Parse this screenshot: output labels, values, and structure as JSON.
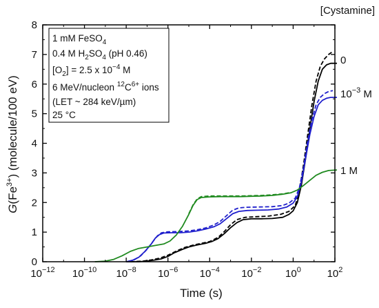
{
  "chart_data": {
    "type": "line",
    "title": "",
    "xlabel": "Time (s)",
    "ylabel": "G(Fe3+) (molecule/100 eV)",
    "xscale": "log10",
    "xlim": [
      1e-12,
      100.0
    ],
    "ylim": [
      0,
      8
    ],
    "grid": false,
    "yticks": [
      0,
      1,
      2,
      3,
      4,
      5,
      6,
      7,
      8
    ],
    "xtick_exponents": [
      -12,
      -10,
      -8,
      -6,
      -4,
      -2,
      0,
      2
    ],
    "legend_title": "[Cystamine]",
    "series_labels": [
      {
        "text": "0",
        "color": "#000000"
      },
      {
        "text": "10−3 M",
        "color": "#1f1fcc"
      },
      {
        "text": "1 M",
        "color": "#1f8a1f"
      }
    ],
    "conditions": [
      "1 mM FeSO4",
      "0.4 M H2SO4 (pH 0.46)",
      "[O2] = 2.5 x 10−4 M",
      "6 MeV/nucleon 12C6+ ions",
      "(LET ~ 284 keV/µm)",
      "25 °C"
    ],
    "series": [
      {
        "cystamine": "0",
        "style": "solid",
        "color": "#000000",
        "points": [
          [
            -8.0,
            0.0
          ],
          [
            -7.4,
            0.0
          ],
          [
            -7.0,
            0.02
          ],
          [
            -6.6,
            0.06
          ],
          [
            -6.3,
            0.1
          ],
          [
            -6.0,
            0.18
          ],
          [
            -5.7,
            0.3
          ],
          [
            -5.3,
            0.42
          ],
          [
            -5.0,
            0.5
          ],
          [
            -4.7,
            0.55
          ],
          [
            -4.5,
            0.58
          ],
          [
            -4.2,
            0.62
          ],
          [
            -3.9,
            0.68
          ],
          [
            -3.6,
            0.78
          ],
          [
            -3.3,
            0.95
          ],
          [
            -3.0,
            1.15
          ],
          [
            -2.7,
            1.32
          ],
          [
            -2.4,
            1.42
          ],
          [
            -2.0,
            1.45
          ],
          [
            -1.5,
            1.45
          ],
          [
            -1.0,
            1.46
          ],
          [
            -0.5,
            1.5
          ],
          [
            -0.2,
            1.6
          ],
          [
            0.0,
            1.72
          ],
          [
            0.2,
            2.0
          ],
          [
            0.4,
            2.6
          ],
          [
            0.6,
            3.5
          ],
          [
            0.8,
            4.5
          ],
          [
            1.0,
            5.4
          ],
          [
            1.2,
            6.1
          ],
          [
            1.4,
            6.5
          ],
          [
            1.6,
            6.65
          ],
          [
            1.8,
            6.7
          ],
          [
            2.1,
            6.7
          ]
        ]
      },
      {
        "cystamine": "0",
        "style": "dashed",
        "color": "#000000",
        "points": [
          [
            -7.8,
            0.0
          ],
          [
            -7.2,
            0.02
          ],
          [
            -6.8,
            0.06
          ],
          [
            -6.4,
            0.12
          ],
          [
            -6.0,
            0.22
          ],
          [
            -5.6,
            0.36
          ],
          [
            -5.2,
            0.48
          ],
          [
            -4.8,
            0.56
          ],
          [
            -4.4,
            0.62
          ],
          [
            -4.0,
            0.68
          ],
          [
            -3.6,
            0.82
          ],
          [
            -3.3,
            1.02
          ],
          [
            -3.0,
            1.25
          ],
          [
            -2.7,
            1.42
          ],
          [
            -2.3,
            1.5
          ],
          [
            -1.8,
            1.52
          ],
          [
            -1.2,
            1.54
          ],
          [
            -0.6,
            1.6
          ],
          [
            -0.2,
            1.7
          ],
          [
            0.1,
            1.9
          ],
          [
            0.3,
            2.4
          ],
          [
            0.5,
            3.3
          ],
          [
            0.7,
            4.3
          ],
          [
            0.9,
            5.3
          ],
          [
            1.1,
            6.1
          ],
          [
            1.3,
            6.6
          ],
          [
            1.5,
            6.85
          ],
          [
            1.7,
            7.0
          ],
          [
            1.9,
            7.1
          ]
        ]
      },
      {
        "cystamine": "10−3 M",
        "style": "solid",
        "color": "#1f1fcc",
        "points": [
          [
            -8.0,
            0.0
          ],
          [
            -7.7,
            0.05
          ],
          [
            -7.4,
            0.15
          ],
          [
            -7.1,
            0.35
          ],
          [
            -6.8,
            0.6
          ],
          [
            -6.6,
            0.8
          ],
          [
            -6.4,
            0.92
          ],
          [
            -6.2,
            0.97
          ],
          [
            -5.8,
            0.98
          ],
          [
            -5.4,
            0.98
          ],
          [
            -5.0,
            1.0
          ],
          [
            -4.6,
            1.04
          ],
          [
            -4.2,
            1.1
          ],
          [
            -3.8,
            1.18
          ],
          [
            -3.5,
            1.28
          ],
          [
            -3.2,
            1.45
          ],
          [
            -2.9,
            1.62
          ],
          [
            -2.6,
            1.7
          ],
          [
            -2.2,
            1.73
          ],
          [
            -1.7,
            1.74
          ],
          [
            -1.2,
            1.75
          ],
          [
            -0.7,
            1.78
          ],
          [
            -0.3,
            1.85
          ],
          [
            0.0,
            1.98
          ],
          [
            0.2,
            2.2
          ],
          [
            0.4,
            2.7
          ],
          [
            0.6,
            3.5
          ],
          [
            0.8,
            4.3
          ],
          [
            1.0,
            4.9
          ],
          [
            1.2,
            5.3
          ],
          [
            1.4,
            5.45
          ],
          [
            1.6,
            5.52
          ],
          [
            1.8,
            5.55
          ],
          [
            2.1,
            5.55
          ]
        ]
      },
      {
        "cystamine": "10−3 M",
        "style": "dashed",
        "color": "#1f1fcc",
        "points": [
          [
            -7.9,
            0.0
          ],
          [
            -7.6,
            0.07
          ],
          [
            -7.3,
            0.2
          ],
          [
            -7.0,
            0.42
          ],
          [
            -6.7,
            0.7
          ],
          [
            -6.5,
            0.88
          ],
          [
            -6.3,
            0.98
          ],
          [
            -6.0,
            1.01
          ],
          [
            -5.5,
            1.02
          ],
          [
            -5.0,
            1.04
          ],
          [
            -4.6,
            1.08
          ],
          [
            -4.2,
            1.14
          ],
          [
            -3.8,
            1.24
          ],
          [
            -3.5,
            1.36
          ],
          [
            -3.2,
            1.55
          ],
          [
            -2.9,
            1.74
          ],
          [
            -2.6,
            1.82
          ],
          [
            -2.2,
            1.84
          ],
          [
            -1.6,
            1.85
          ],
          [
            -1.0,
            1.86
          ],
          [
            -0.5,
            1.9
          ],
          [
            -0.2,
            1.98
          ],
          [
            0.1,
            2.15
          ],
          [
            0.3,
            2.5
          ],
          [
            0.5,
            3.2
          ],
          [
            0.7,
            4.1
          ],
          [
            0.9,
            4.8
          ],
          [
            1.1,
            5.3
          ],
          [
            1.3,
            5.55
          ],
          [
            1.5,
            5.68
          ],
          [
            1.7,
            5.75
          ],
          [
            1.9,
            5.78
          ]
        ]
      },
      {
        "cystamine": "1 M",
        "style": "solid",
        "color": "#1f8a1f",
        "points": [
          [
            -9.5,
            0.0
          ],
          [
            -9.0,
            0.02
          ],
          [
            -8.6,
            0.08
          ],
          [
            -8.2,
            0.2
          ],
          [
            -7.8,
            0.35
          ],
          [
            -7.4,
            0.45
          ],
          [
            -7.0,
            0.5
          ],
          [
            -6.6,
            0.55
          ],
          [
            -6.2,
            0.6
          ],
          [
            -5.9,
            0.7
          ],
          [
            -5.6,
            0.9
          ],
          [
            -5.3,
            1.2
          ],
          [
            -5.0,
            1.6
          ],
          [
            -4.8,
            1.9
          ],
          [
            -4.6,
            2.1
          ],
          [
            -4.4,
            2.17
          ],
          [
            -4.0,
            2.19
          ],
          [
            -3.5,
            2.2
          ],
          [
            -3.0,
            2.2
          ],
          [
            -2.5,
            2.2
          ],
          [
            -2.0,
            2.21
          ],
          [
            -1.5,
            2.22
          ],
          [
            -1.0,
            2.24
          ],
          [
            -0.5,
            2.28
          ],
          [
            -0.1,
            2.33
          ],
          [
            0.2,
            2.42
          ],
          [
            0.5,
            2.58
          ],
          [
            0.8,
            2.75
          ],
          [
            1.1,
            2.92
          ],
          [
            1.4,
            3.02
          ],
          [
            1.7,
            3.08
          ],
          [
            2.1,
            3.1
          ]
        ]
      },
      {
        "cystamine": "1 M",
        "style": "dashed",
        "color": "#1f8a1f",
        "points": [
          [
            -5.0,
            1.62
          ],
          [
            -4.8,
            1.92
          ],
          [
            -4.6,
            2.12
          ],
          [
            -4.4,
            2.2
          ],
          [
            -4.0,
            2.22
          ],
          [
            -3.5,
            2.22
          ],
          [
            -3.0,
            2.22
          ],
          [
            -2.5,
            2.22
          ],
          [
            -2.0,
            2.23
          ],
          [
            -1.5,
            2.24
          ],
          [
            -1.0,
            2.26
          ],
          [
            -0.5,
            2.29
          ],
          [
            -0.2,
            2.33
          ]
        ]
      }
    ]
  }
}
